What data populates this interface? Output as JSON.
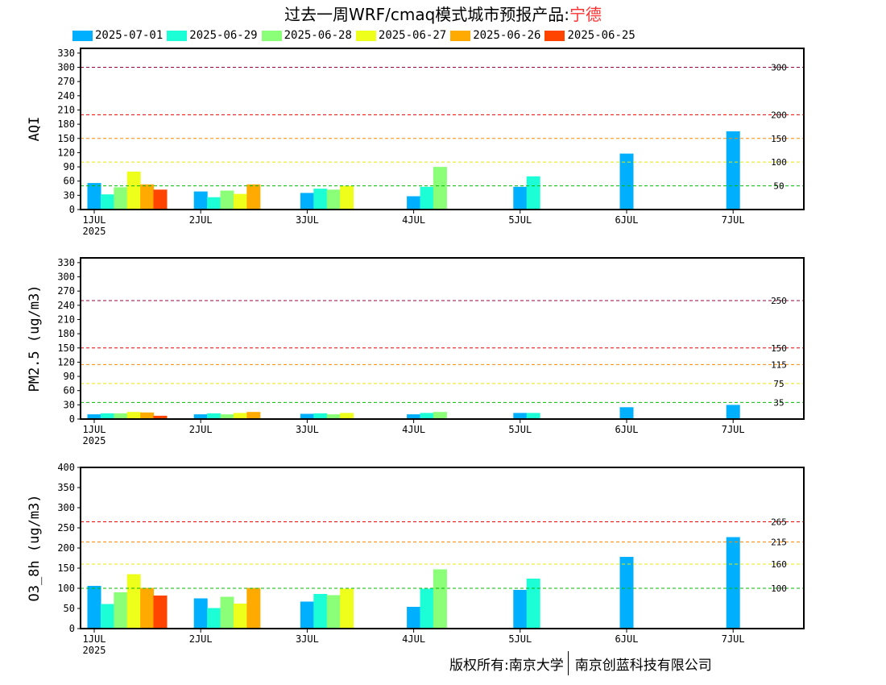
{
  "title": {
    "prefix": "过去一周WRF/cmaq模式城市预报产品:",
    "city": "宁德",
    "city_color": "#ff3030"
  },
  "footer": {
    "left": "版权所有:南京大学",
    "right": "南京创蓝科技有限公司"
  },
  "legend": [
    {
      "name": "2025-07-01",
      "color": "#00b0ff"
    },
    {
      "name": "2025-06-29",
      "color": "#1cffd6"
    },
    {
      "name": "2025-06-28",
      "color": "#8cff78"
    },
    {
      "name": "2025-06-27",
      "color": "#eeff1c"
    },
    {
      "name": "2025-06-26",
      "color": "#ffaa00"
    },
    {
      "name": "2025-06-25",
      "color": "#ff4400"
    }
  ],
  "chart_data": [
    {
      "type": "bar",
      "ylabel": "AQI",
      "ylim": [
        0,
        340
      ],
      "yticks": [
        0,
        30,
        60,
        90,
        120,
        150,
        180,
        210,
        240,
        270,
        300,
        330
      ],
      "x_ticks": [
        {
          "label": "1JUL",
          "sub": "2025"
        },
        {
          "label": "2JUL"
        },
        {
          "label": "3JUL"
        },
        {
          "label": "4JUL"
        },
        {
          "label": "5JUL"
        },
        {
          "label": "6JUL"
        },
        {
          "label": "7JUL"
        }
      ],
      "grid": false,
      "thresholds": [
        {
          "value": 50,
          "label": "50",
          "color": "#00bb00"
        },
        {
          "value": 100,
          "label": "100",
          "color": "#e8e800"
        },
        {
          "value": 150,
          "label": "150",
          "color": "#ff8800"
        },
        {
          "value": 200,
          "label": "200",
          "color": "#ee0000"
        },
        {
          "value": 300,
          "label": "300",
          "color": "#990044"
        }
      ],
      "series": [
        {
          "name": "2025-07-01",
          "values": [
            {
              "day": 1,
              "value": 56
            },
            {
              "day": 2,
              "value": 38
            },
            {
              "day": 3,
              "value": 35
            },
            {
              "day": 4,
              "value": 28
            },
            {
              "day": 5,
              "value": 48
            },
            {
              "day": 6,
              "value": 118
            },
            {
              "day": 7,
              "value": 165
            }
          ]
        },
        {
          "name": "2025-06-29",
          "values": [
            {
              "day": 1,
              "value": 32
            },
            {
              "day": 2,
              "value": 26
            },
            {
              "day": 3,
              "value": 44
            },
            {
              "day": 4,
              "value": 48
            },
            {
              "day": 5,
              "value": 70
            }
          ]
        },
        {
          "name": "2025-06-28",
          "values": [
            {
              "day": 1,
              "value": 47
            },
            {
              "day": 2,
              "value": 40
            },
            {
              "day": 3,
              "value": 42
            },
            {
              "day": 4,
              "value": 90
            }
          ]
        },
        {
          "name": "2025-06-27",
          "values": [
            {
              "day": 1,
              "value": 80
            },
            {
              "day": 2,
              "value": 33
            },
            {
              "day": 3,
              "value": 50
            }
          ]
        },
        {
          "name": "2025-06-26",
          "values": [
            {
              "day": 1,
              "value": 53
            },
            {
              "day": 2,
              "value": 53
            }
          ]
        },
        {
          "name": "2025-06-25",
          "values": [
            {
              "day": 1,
              "value": 42
            }
          ]
        }
      ]
    },
    {
      "type": "bar",
      "ylabel": "PM2.5 (ug/m3)",
      "ylim": [
        0,
        340
      ],
      "yticks": [
        0,
        30,
        60,
        90,
        120,
        150,
        180,
        210,
        240,
        270,
        300,
        330
      ],
      "x_ticks": [
        {
          "label": "1JUL",
          "sub": "2025"
        },
        {
          "label": "2JUL"
        },
        {
          "label": "3JUL"
        },
        {
          "label": "4JUL"
        },
        {
          "label": "5JUL"
        },
        {
          "label": "6JUL"
        },
        {
          "label": "7JUL"
        }
      ],
      "grid": false,
      "thresholds": [
        {
          "value": 35,
          "label": "35",
          "color": "#00bb00"
        },
        {
          "value": 75,
          "label": "75",
          "color": "#e8e800"
        },
        {
          "value": 115,
          "label": "115",
          "color": "#ff8800"
        },
        {
          "value": 150,
          "label": "150",
          "color": "#ee0000"
        },
        {
          "value": 250,
          "label": "250",
          "color": "#990044"
        }
      ],
      "series": [
        {
          "name": "2025-07-01",
          "values": [
            {
              "day": 1,
              "value": 10
            },
            {
              "day": 2,
              "value": 10
            },
            {
              "day": 3,
              "value": 11
            },
            {
              "day": 4,
              "value": 10
            },
            {
              "day": 5,
              "value": 13
            },
            {
              "day": 6,
              "value": 25
            },
            {
              "day": 7,
              "value": 30
            }
          ]
        },
        {
          "name": "2025-06-29",
          "values": [
            {
              "day": 1,
              "value": 12
            },
            {
              "day": 2,
              "value": 12
            },
            {
              "day": 3,
              "value": 12
            },
            {
              "day": 4,
              "value": 13
            },
            {
              "day": 5,
              "value": 13
            }
          ]
        },
        {
          "name": "2025-06-28",
          "values": [
            {
              "day": 1,
              "value": 12
            },
            {
              "day": 2,
              "value": 10
            },
            {
              "day": 3,
              "value": 10
            },
            {
              "day": 4,
              "value": 15
            }
          ]
        },
        {
          "name": "2025-06-27",
          "values": [
            {
              "day": 1,
              "value": 15
            },
            {
              "day": 2,
              "value": 13
            },
            {
              "day": 3,
              "value": 13
            }
          ]
        },
        {
          "name": "2025-06-26",
          "values": [
            {
              "day": 1,
              "value": 14
            },
            {
              "day": 2,
              "value": 15
            }
          ]
        },
        {
          "name": "2025-06-25",
          "values": [
            {
              "day": 1,
              "value": 7
            }
          ]
        }
      ]
    },
    {
      "type": "bar",
      "ylabel": "O3_8h (ug/m3)",
      "ylim": [
        0,
        400
      ],
      "yticks": [
        0,
        50,
        100,
        150,
        200,
        250,
        300,
        350,
        400
      ],
      "x_ticks": [
        {
          "label": "1JUL",
          "sub": "2025"
        },
        {
          "label": "2JUL"
        },
        {
          "label": "3JUL"
        },
        {
          "label": "4JUL"
        },
        {
          "label": "5JUL"
        },
        {
          "label": "6JUL"
        },
        {
          "label": "7JUL"
        }
      ],
      "grid": false,
      "thresholds": [
        {
          "value": 100,
          "label": "100",
          "color": "#00bb00"
        },
        {
          "value": 160,
          "label": "160",
          "color": "#e8e800"
        },
        {
          "value": 215,
          "label": "215",
          "color": "#ff8800"
        },
        {
          "value": 265,
          "label": "265",
          "color": "#ee0000"
        }
      ],
      "series": [
        {
          "name": "2025-07-01",
          "values": [
            {
              "day": 1,
              "value": 106
            },
            {
              "day": 2,
              "value": 75
            },
            {
              "day": 3,
              "value": 67
            },
            {
              "day": 4,
              "value": 54
            },
            {
              "day": 5,
              "value": 96
            },
            {
              "day": 6,
              "value": 178
            },
            {
              "day": 7,
              "value": 227
            }
          ]
        },
        {
          "name": "2025-06-29",
          "values": [
            {
              "day": 1,
              "value": 61
            },
            {
              "day": 2,
              "value": 51
            },
            {
              "day": 3,
              "value": 86
            },
            {
              "day": 4,
              "value": 99
            },
            {
              "day": 5,
              "value": 124
            }
          ]
        },
        {
          "name": "2025-06-28",
          "values": [
            {
              "day": 1,
              "value": 90
            },
            {
              "day": 2,
              "value": 79
            },
            {
              "day": 3,
              "value": 83
            },
            {
              "day": 4,
              "value": 147
            }
          ]
        },
        {
          "name": "2025-06-27",
          "values": [
            {
              "day": 1,
              "value": 135
            },
            {
              "day": 2,
              "value": 62
            },
            {
              "day": 3,
              "value": 99
            }
          ]
        },
        {
          "name": "2025-06-26",
          "values": [
            {
              "day": 1,
              "value": 101
            },
            {
              "day": 2,
              "value": 101
            }
          ]
        },
        {
          "name": "2025-06-25",
          "values": [
            {
              "day": 1,
              "value": 82
            }
          ]
        }
      ]
    }
  ]
}
